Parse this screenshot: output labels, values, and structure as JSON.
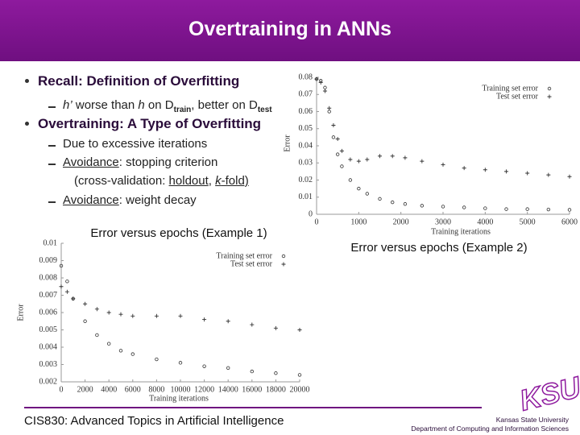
{
  "title": "Overtraining in ANNs",
  "bullets": [
    {
      "text": "Recall: Definition of Overfitting",
      "subitems": [
        {
          "parts": [
            "h’",
            " worse than ",
            "h",
            " on D",
            "train",
            ", better on D",
            "test"
          ]
        }
      ]
    },
    {
      "text": "Overtraining: A Type of Overfitting",
      "subitems": [
        {
          "parts": [
            "Due to excessive iterations"
          ]
        },
        {
          "parts": [
            "Avoidance",
            ": stopping criterion"
          ],
          "continuation": [
            "(cross-validation: ",
            "holdout",
            ", ",
            "k",
            "-fold)"
          ]
        },
        {
          "parts": [
            "Avoidance",
            ": weight decay"
          ]
        }
      ]
    }
  ],
  "charts": [
    {
      "type": "scatter",
      "caption": "Error versus epochs (Example 2)",
      "xlabel": "Training iterations",
      "ylabel": "Error",
      "x": [
        0,
        100,
        200,
        300,
        400,
        500,
        600,
        800,
        1000,
        1200,
        1500,
        1800,
        2100,
        2500,
        3000,
        3500,
        4000,
        4500,
        5000,
        5500,
        6000
      ],
      "series": [
        {
          "name": "Training set error",
          "marker": "circle",
          "color": "#333333",
          "values": [
            0.079,
            0.078,
            0.074,
            0.06,
            0.045,
            0.035,
            0.028,
            0.02,
            0.015,
            0.012,
            0.009,
            0.007,
            0.006,
            0.005,
            0.0045,
            0.004,
            0.0035,
            0.003,
            0.003,
            0.0028,
            0.0026
          ]
        },
        {
          "name": "Test set error",
          "marker": "plus",
          "color": "#333333",
          "values": [
            0.079,
            0.077,
            0.072,
            0.062,
            0.052,
            0.044,
            0.037,
            0.032,
            0.031,
            0.032,
            0.034,
            0.034,
            0.033,
            0.031,
            0.029,
            0.027,
            0.026,
            0.025,
            0.024,
            0.023,
            0.022
          ]
        }
      ],
      "xlim": [
        0,
        6000
      ],
      "xticks": [
        0,
        1000,
        2000,
        3000,
        4000,
        5000,
        6000
      ],
      "ylim": [
        0,
        0.08
      ],
      "yticks": [
        0,
        0.01,
        0.02,
        0.03,
        0.04,
        0.05,
        0.06,
        0.07,
        0.08
      ]
    },
    {
      "type": "scatter",
      "caption": "Error versus epochs (Example 1)",
      "xlabel": "Training iterations",
      "ylabel": "Error",
      "x": [
        0,
        500,
        1000,
        2000,
        3000,
        4000,
        5000,
        6000,
        8000,
        10000,
        12000,
        14000,
        16000,
        18000,
        20000
      ],
      "series": [
        {
          "name": "Training set error",
          "marker": "circle",
          "color": "#333333",
          "values": [
            0.0087,
            0.0078,
            0.0068,
            0.0055,
            0.0047,
            0.0042,
            0.0038,
            0.0036,
            0.0033,
            0.0031,
            0.0029,
            0.0028,
            0.0026,
            0.0025,
            0.0024
          ]
        },
        {
          "name": "Test set error",
          "marker": "plus",
          "color": "#333333",
          "values": [
            0.0075,
            0.0072,
            0.0068,
            0.0065,
            0.0062,
            0.006,
            0.0059,
            0.0058,
            0.0058,
            0.0058,
            0.0056,
            0.0055,
            0.0053,
            0.0051,
            0.005
          ]
        }
      ],
      "xlim": [
        0,
        20000
      ],
      "xticks": [
        0,
        2000,
        4000,
        6000,
        8000,
        10000,
        12000,
        14000,
        16000,
        18000,
        20000
      ],
      "ylim": [
        0.002,
        0.01
      ],
      "yticks": [
        0.002,
        0.003,
        0.004,
        0.005,
        0.006,
        0.007,
        0.008,
        0.009,
        0.01
      ]
    }
  ],
  "footer": {
    "course": "CIS830: Advanced Topics in Artificial Intelligence",
    "logo": "KSU",
    "university": "Kansas State University",
    "department": "Department of Computing and Information Sciences"
  }
}
